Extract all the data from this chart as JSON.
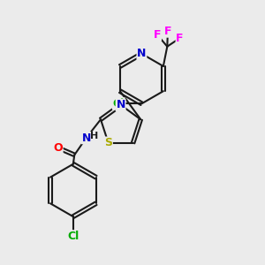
{
  "bg_color": "#ebebeb",
  "bond_color": "#1a1a1a",
  "atom_colors": {
    "F": "#ff00ff",
    "N": "#0000cc",
    "Cl": "#00aa00",
    "S": "#aaaa00",
    "O": "#ff0000",
    "H": "#1a1a1a",
    "C": "#1a1a1a"
  },
  "figsize": [
    3.0,
    3.0
  ],
  "dpi": 100
}
